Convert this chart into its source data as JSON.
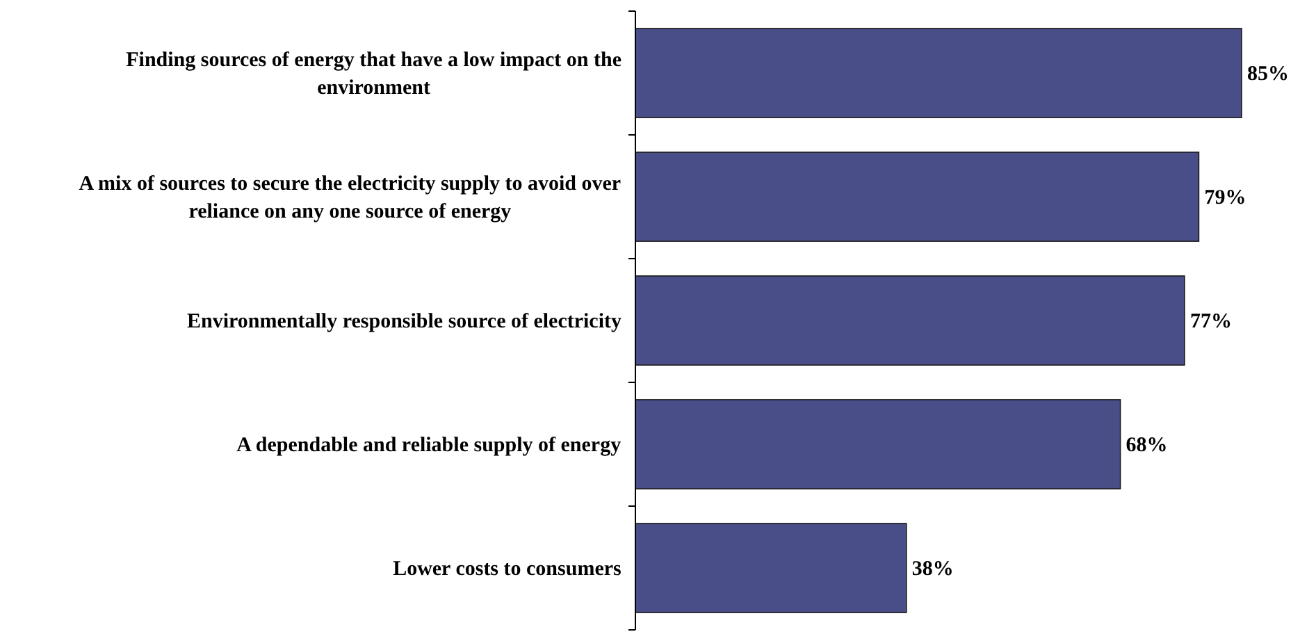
{
  "chart_data": {
    "type": "bar",
    "orientation": "horizontal",
    "categories": [
      "Finding sources of energy that have a low impact on the environment",
      "A mix of sources to secure the electricity supply to avoid over reliance on any one source of energy",
      "Environmentally responsible source of electricity",
      "A dependable and reliable supply of energy",
      "Lower costs to consumers"
    ],
    "values": [
      85,
      79,
      77,
      68,
      38
    ],
    "color": "#4a4e88",
    "data_labels": true,
    "value_labels": [
      "85%",
      "79%",
      "77%",
      "68%",
      "38%"
    ]
  }
}
